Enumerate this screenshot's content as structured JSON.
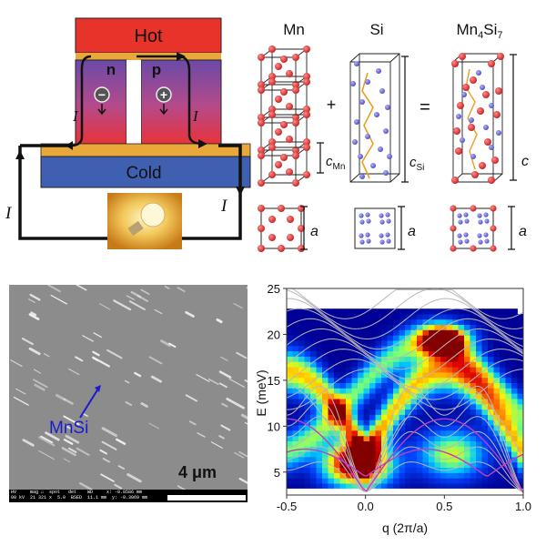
{
  "device": {
    "hot": "Hot",
    "cold": "Cold",
    "n_leg": "n",
    "p_leg": "p",
    "minus": "−",
    "plus": "+",
    "current": "I"
  },
  "crystal": {
    "mn": "Mn",
    "si": "Si",
    "product_base": "Mn",
    "product_sub1": "4",
    "product_mid": "Si",
    "product_sub2": "7",
    "plus_sign": "+",
    "equals_sign": "=",
    "c_mn_base": "c",
    "c_mn_sub": "Mn",
    "c_si_base": "c",
    "c_si_sub": "Si",
    "c": "c",
    "a": "a"
  },
  "sem": {
    "label": "MnSi",
    "scale": "4 μm",
    "info_line1": "HV     mag ☐  spot   det    WD     x: -0.8586 mm",
    "info_line2": "00 kV  21 321 x  5.0  BSED  11.1 mm  y: -0.3069 mm"
  },
  "colors": {
    "hot": "#e8332a",
    "cold": "#3f5fb0",
    "atom_red": "#d92b2b",
    "atom_blue": "#6a6ad8",
    "bond_orange": "#e8a020",
    "dispersion_gray": "#b8b8b8",
    "dispersion_magenta": "#c23cc2"
  },
  "chart_data": {
    "type": "heatmap",
    "xlabel": "q (2π/a)",
    "ylabel": "E (meV)",
    "xlim": [
      -0.5,
      1.0
    ],
    "ylim": [
      2.5,
      25
    ],
    "x_ticks": [
      "-0.5",
      "0.0",
      "0.5",
      "1.0"
    ],
    "y_ticks": [
      "5",
      "10",
      "15",
      "20",
      "25"
    ],
    "note": "intensity map with overlaid dispersion curves"
  }
}
